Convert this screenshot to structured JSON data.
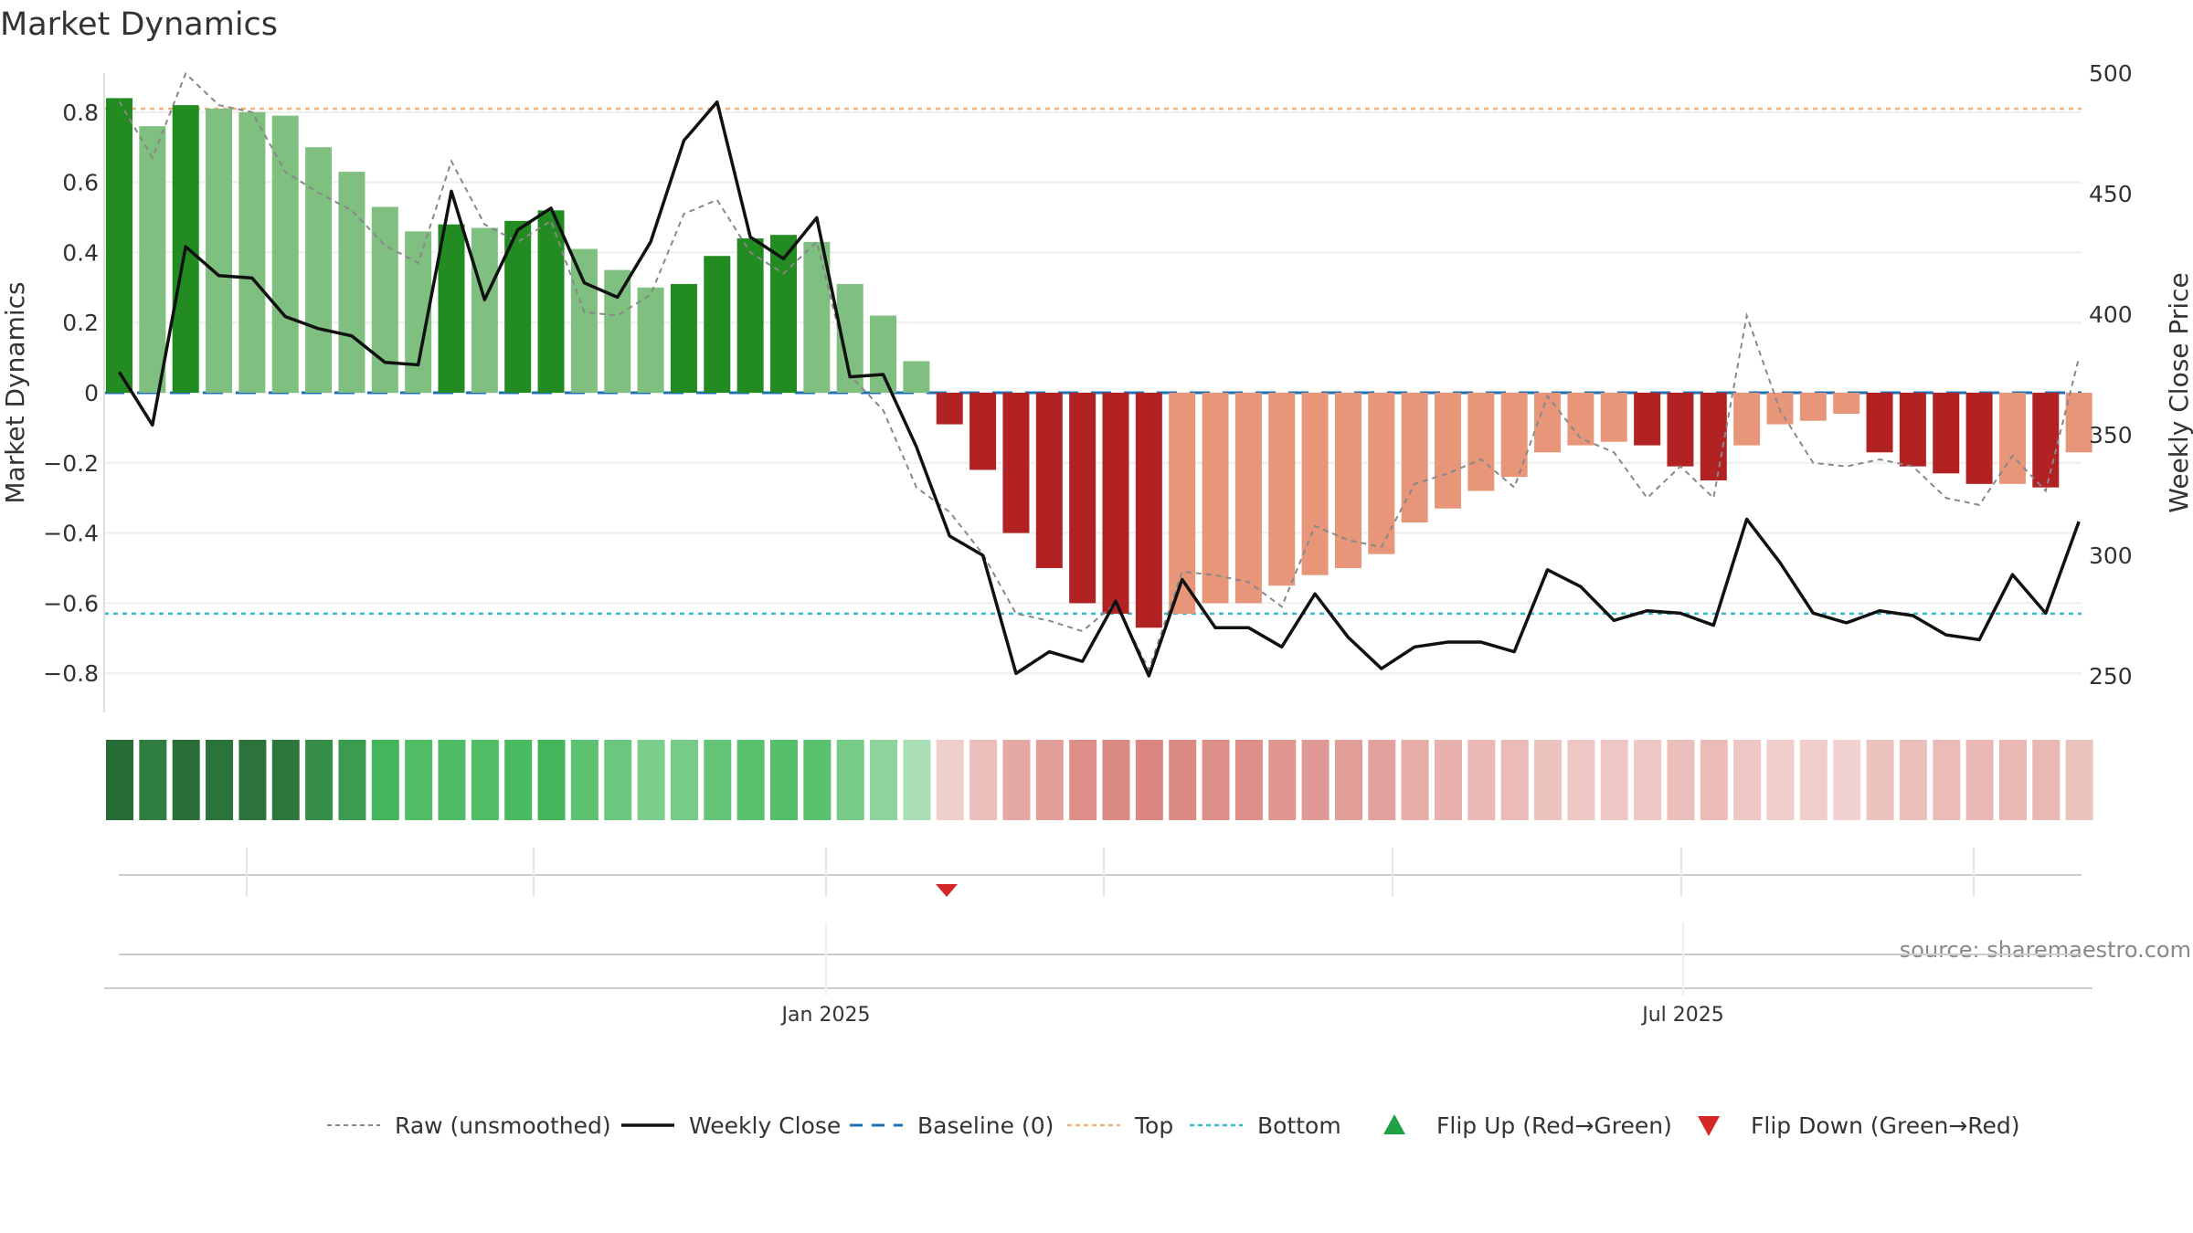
{
  "title": "Market Dynamics",
  "source": "source: sharemaestro.com",
  "left_axis_label": "Market Dynamics",
  "right_axis_label": "Weekly Close Price",
  "left_ticks": [
    "0.8",
    "0.6",
    "0.4",
    "0.2",
    "0",
    "−0.2",
    "−0.4",
    "−0.6",
    "−0.8"
  ],
  "right_ticks": [
    "500",
    "450",
    "400",
    "350",
    "300",
    "250"
  ],
  "x_ticks": [
    "Jan 2025",
    "Jul 2025"
  ],
  "colors": {
    "green_strong": "#228b22",
    "green_light": "#7fbf7f",
    "red_strong": "#b22222",
    "red_light": "#e8967a",
    "close_line": "#111111",
    "raw_line": "#888888",
    "baseline": "#1f6fb4",
    "top": "#f0b27a",
    "bottom": "#36b9cc",
    "flip_up": "#22a045",
    "flip_down": "#d62728"
  },
  "legend": [
    {
      "label": "Raw (unsmoothed)",
      "icon": "dotted-gray-line"
    },
    {
      "label": "Weekly Close",
      "icon": "solid-black-line"
    },
    {
      "label": "Baseline (0)",
      "icon": "dashed-blue-line"
    },
    {
      "label": "Top",
      "icon": "dotted-orange-line"
    },
    {
      "label": "Bottom",
      "icon": "dotted-cyan-line"
    },
    {
      "label": "Flip Up (Red→Green)",
      "icon": "green-triangle-up"
    },
    {
      "label": "Flip Down (Green→Red)",
      "icon": "red-triangle-down"
    }
  ],
  "chart_data": {
    "type": "bar",
    "title": "Market Dynamics",
    "ylabel": "Market Dynamics",
    "ylim": [
      -0.9,
      0.9
    ],
    "y2label": "Weekly Close Price",
    "y2lim": [
      235,
      500
    ],
    "x_start_week": "2024-09-05",
    "x_ticks": [
      "Jan 2025",
      "Jul 2025"
    ],
    "top_level": 0.81,
    "bottom_level": -0.63,
    "baseline": 0,
    "series": [
      {
        "name": "Market Dynamics",
        "values": [
          0.84,
          0.76,
          0.82,
          0.81,
          0.8,
          0.79,
          0.7,
          0.63,
          0.53,
          0.46,
          0.48,
          0.47,
          0.49,
          0.52,
          0.41,
          0.35,
          0.3,
          0.31,
          0.39,
          0.44,
          0.45,
          0.43,
          0.31,
          0.22,
          0.09,
          -0.09,
          -0.22,
          -0.4,
          -0.5,
          -0.6,
          -0.63,
          -0.67,
          -0.63,
          -0.6,
          -0.6,
          -0.55,
          -0.52,
          -0.5,
          -0.46,
          -0.37,
          -0.33,
          -0.28,
          -0.24,
          -0.17,
          -0.15,
          -0.14,
          -0.15,
          -0.21,
          -0.25,
          -0.15,
          -0.09,
          -0.08,
          -0.06,
          -0.17,
          -0.21,
          -0.23,
          -0.26,
          -0.26,
          -0.27,
          -0.17
        ],
        "strength": [
          "strong",
          "light",
          "strong",
          "light",
          "light",
          "light",
          "light",
          "light",
          "light",
          "light",
          "strong",
          "light",
          "strong",
          "strong",
          "light",
          "light",
          "light",
          "strong",
          "strong",
          "strong",
          "strong",
          "light",
          "light",
          "light",
          "light",
          "strong",
          "strong",
          "strong",
          "strong",
          "strong",
          "strong",
          "strong",
          "light",
          "light",
          "light",
          "light",
          "light",
          "light",
          "light",
          "light",
          "light",
          "light",
          "light",
          "light",
          "light",
          "light",
          "strong",
          "strong",
          "strong",
          "light",
          "light",
          "light",
          "light",
          "strong",
          "strong",
          "strong",
          "strong",
          "light",
          "strong",
          "light"
        ]
      },
      {
        "name": "Raw (unsmoothed)",
        "values": [
          0.83,
          0.67,
          0.91,
          0.82,
          0.8,
          0.63,
          0.57,
          0.52,
          0.42,
          0.37,
          0.66,
          0.48,
          0.43,
          0.49,
          0.23,
          0.22,
          0.28,
          0.51,
          0.55,
          0.4,
          0.34,
          0.43,
          0.05,
          -0.05,
          -0.27,
          -0.34,
          -0.46,
          -0.63,
          -0.65,
          -0.68,
          -0.6,
          -0.79,
          -0.51,
          -0.52,
          -0.54,
          -0.61,
          -0.38,
          -0.42,
          -0.44,
          -0.26,
          -0.23,
          -0.19,
          -0.27,
          -0.01,
          -0.13,
          -0.17,
          -0.3,
          -0.21,
          -0.3,
          0.22,
          -0.05,
          -0.2,
          -0.21,
          -0.19,
          -0.21,
          -0.3,
          -0.32,
          -0.18,
          -0.28,
          0.1
        ]
      },
      {
        "name": "Weekly Close",
        "values": [
          376,
          354,
          428,
          416,
          415,
          399,
          394,
          391,
          380,
          379,
          451,
          406,
          435,
          444,
          413,
          407,
          430,
          472,
          488,
          432,
          423,
          440,
          374,
          375,
          345,
          308,
          300,
          251,
          260,
          256,
          281,
          250,
          290,
          270,
          270,
          262,
          284,
          266,
          253,
          262,
          264,
          264,
          260,
          294,
          287,
          273,
          277,
          276,
          271,
          315,
          297,
          276,
          272,
          277,
          275,
          267,
          265,
          292,
          276,
          314
        ]
      }
    ],
    "flip_up": [],
    "flip_down": [
      "2025-01-23"
    ]
  }
}
